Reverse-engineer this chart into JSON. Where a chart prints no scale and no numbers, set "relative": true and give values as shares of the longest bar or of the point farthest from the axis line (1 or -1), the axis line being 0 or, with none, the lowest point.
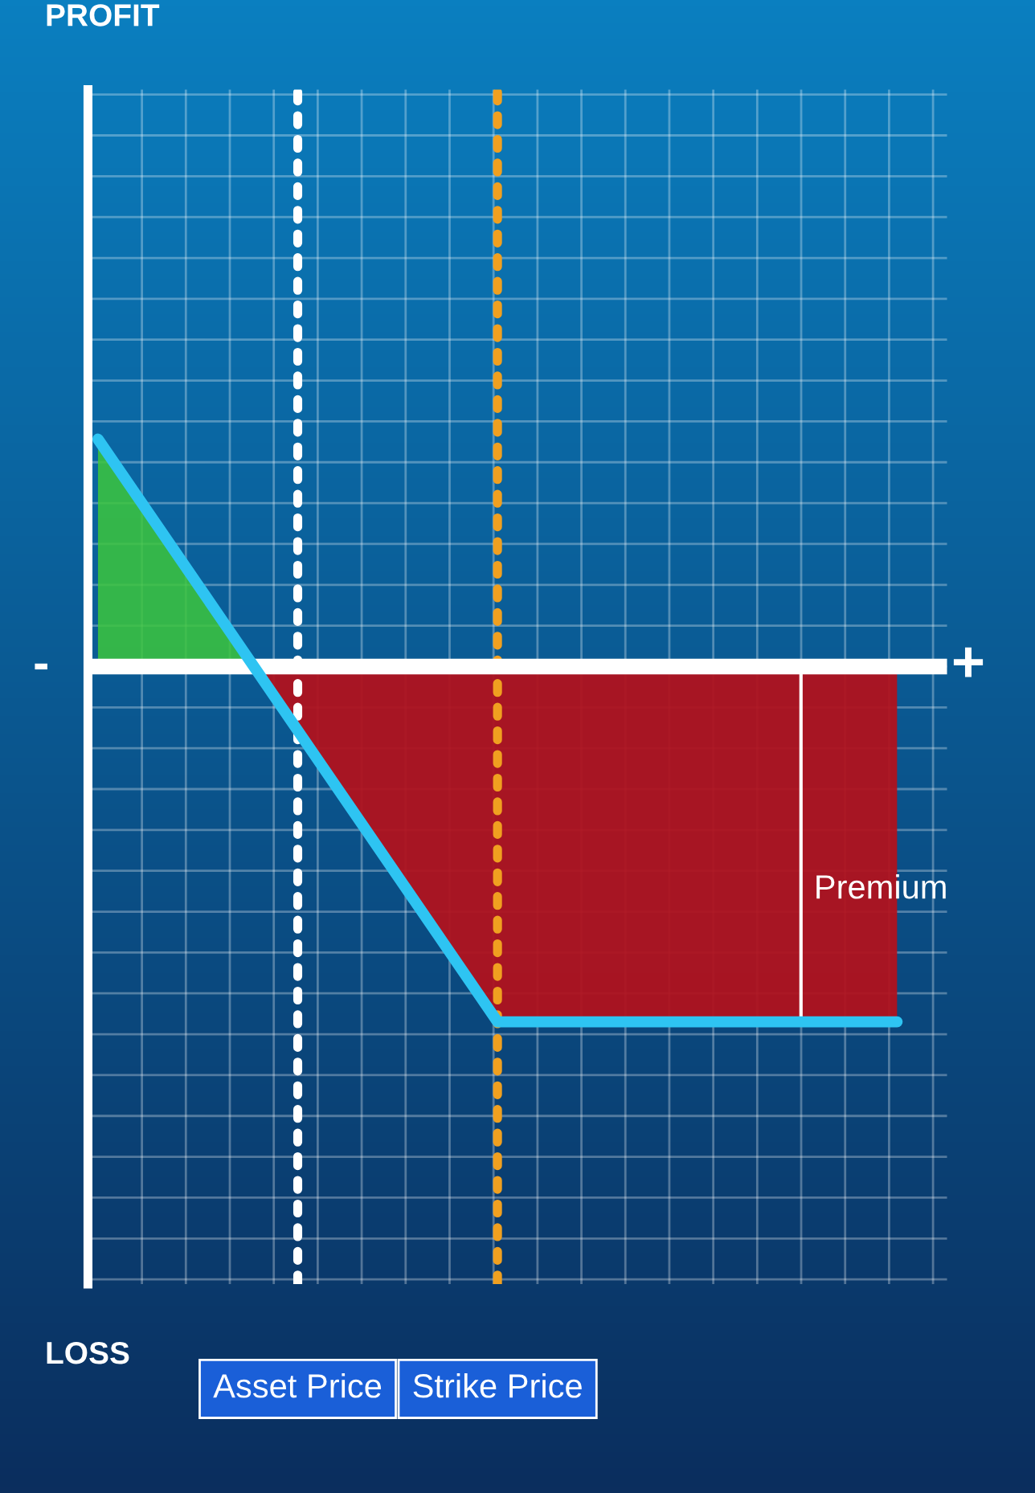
{
  "chart_data": {
    "type": "line",
    "relative": true,
    "categories": [
      null,
      "Asset Price",
      "Strike Price",
      null,
      null
    ],
    "series": [
      {
        "color": "#2ec4f2",
        "values": [
          0.64,
          -0.18,
          -1,
          -1,
          -1
        ]
      }
    ],
    "ref_lines": [
      {
        "axis": "x",
        "value": "Asset Price",
        "color": "#ffffff",
        "line_style": "dotted"
      },
      {
        "axis": "x",
        "value": "Strike Price",
        "color": "#f0a020",
        "line_style": "dotted"
      }
    ],
    "annotations": [
      "PROFIT",
      "LOSS",
      "-",
      "+",
      "Premium"
    ],
    "grid": true
  }
}
